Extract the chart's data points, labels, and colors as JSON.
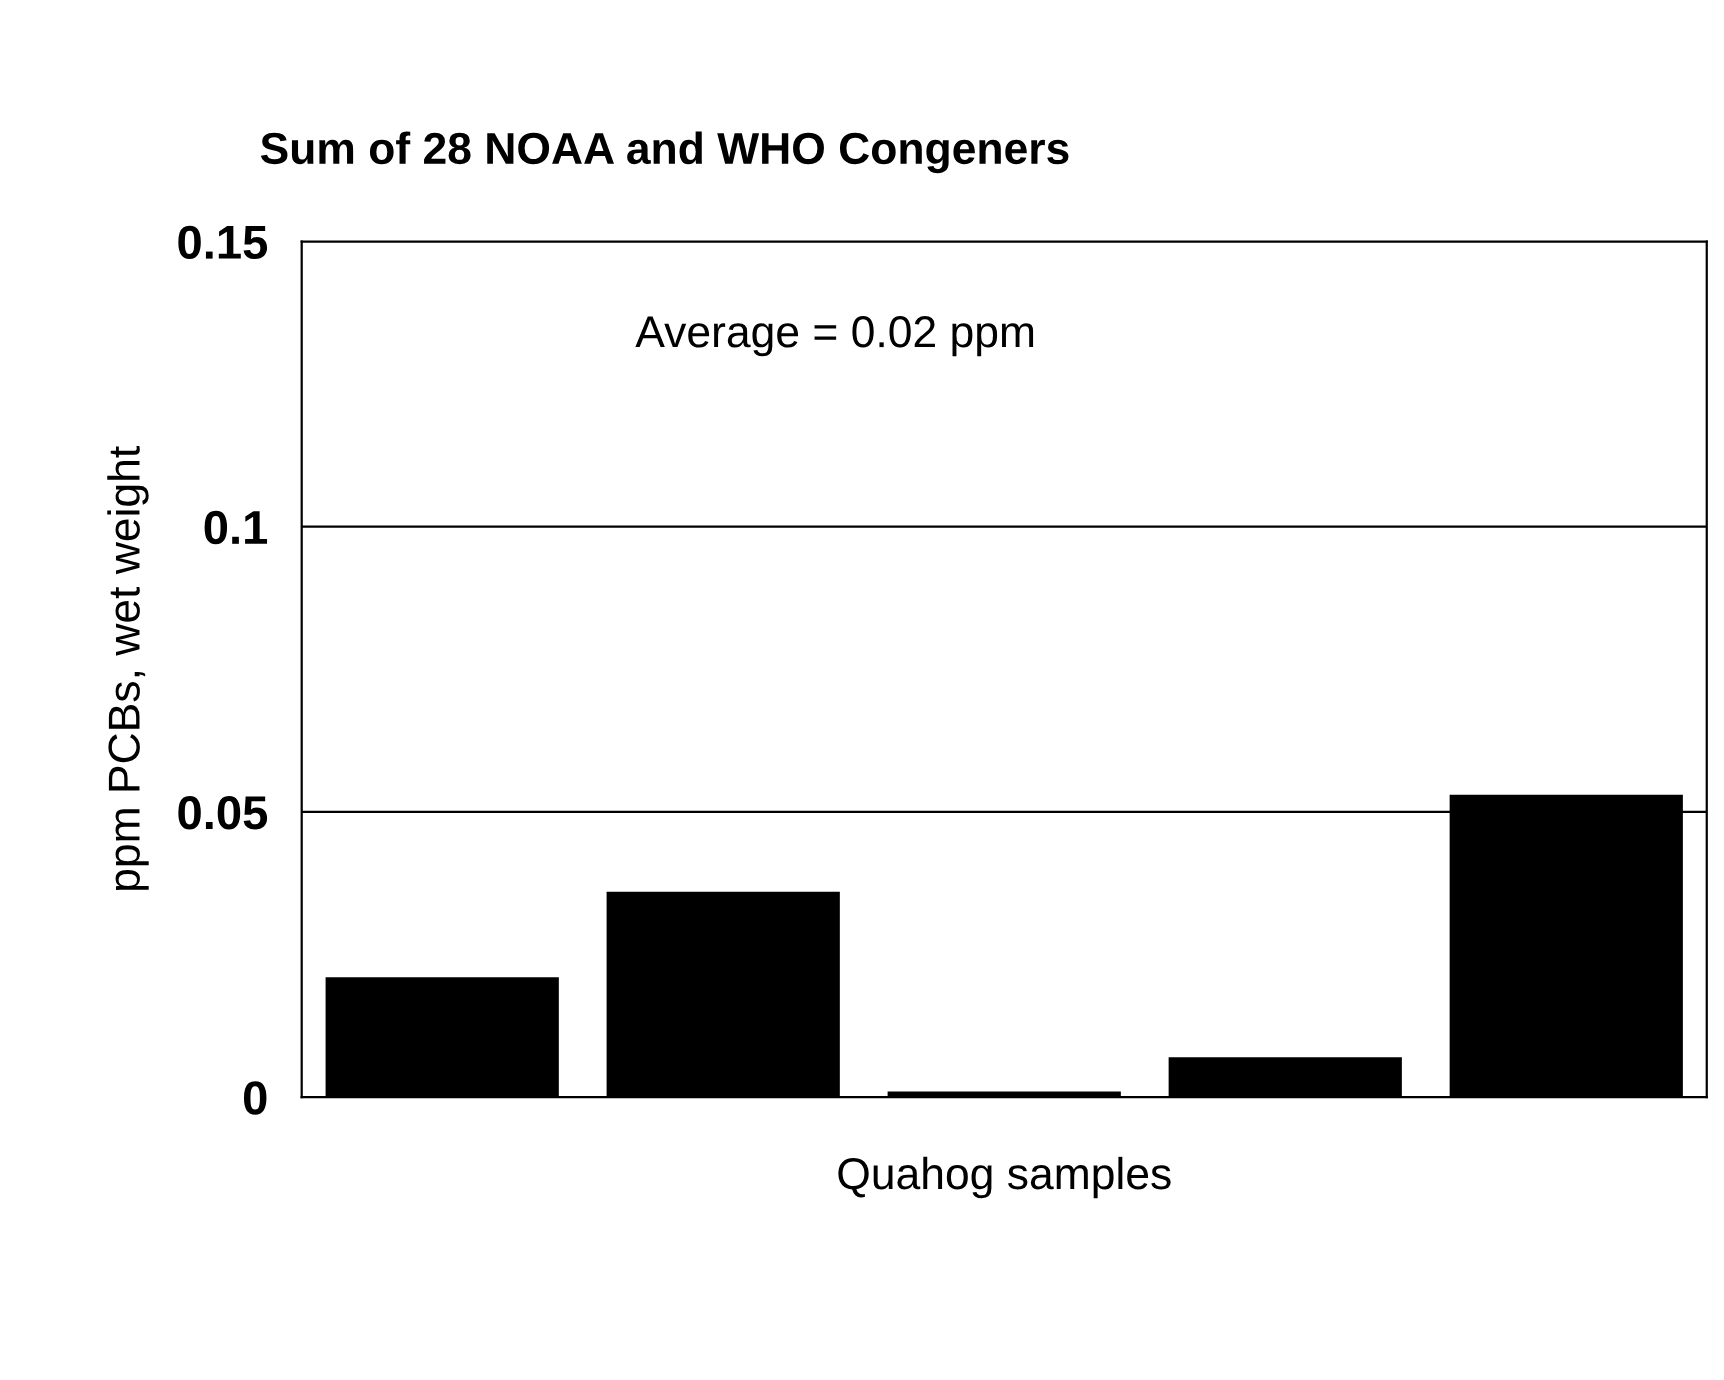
{
  "chart_data": {
    "type": "bar",
    "title": "Sum of 28 NOAA and WHO Congeners",
    "xlabel": "Quahog samples",
    "ylabel": "ppm PCBs, wet weight",
    "categories": [
      null,
      null,
      null,
      null,
      null
    ],
    "series": [
      {
        "color": "#000000",
        "values": [
          0.021,
          0.036,
          0.001,
          0.007,
          0.053
        ]
      }
    ],
    "ylim": [
      0,
      0.15
    ],
    "yticks": [
      0,
      0.05,
      0.1,
      0.15
    ],
    "grid": "y",
    "legend": false,
    "annotations": [
      "Average = 0.02 ppm"
    ]
  }
}
